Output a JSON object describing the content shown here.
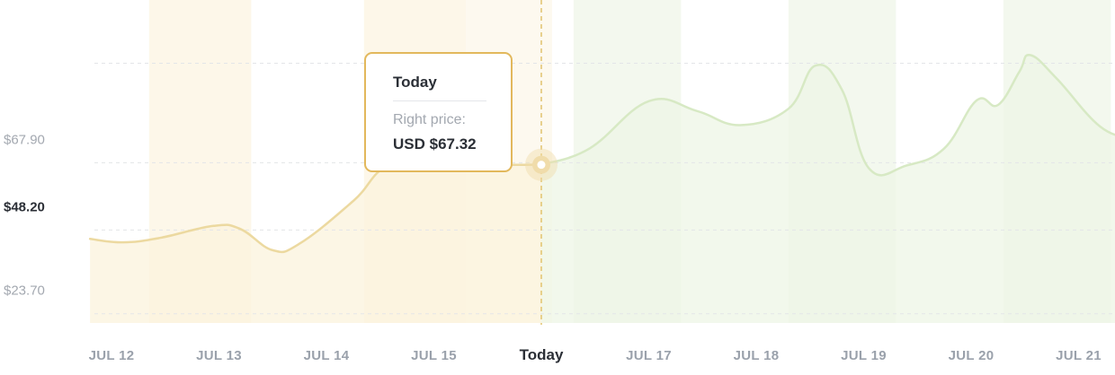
{
  "chart_data": {
    "type": "area",
    "x_labels": [
      "JUL 12",
      "JUL 13",
      "JUL 14",
      "JUL 15",
      "Today",
      "JUL 17",
      "JUL 18",
      "JUL 19",
      "JUL 20",
      "JUL 21"
    ],
    "today_label": "Today",
    "y_ticks": [
      "$67.90",
      "$48.20",
      "$23.70"
    ],
    "y_tick_values": [
      67.9,
      48.2,
      23.7
    ],
    "current_tick": "$48.20",
    "ylim": [
      21,
      110
    ],
    "xlim": [
      0,
      9.35
    ],
    "grid": true,
    "series": [
      {
        "points": [
          [
            -0.2,
            45.6
          ],
          [
            0.1,
            44.6
          ],
          [
            0.45,
            45.9
          ],
          [
            0.95,
            49.4
          ],
          [
            1.2,
            48.5
          ],
          [
            1.5,
            42.3
          ],
          [
            1.75,
            44.2
          ],
          [
            2.25,
            56.7
          ],
          [
            2.6,
            67.3
          ],
          [
            3.2,
            67.8
          ],
          [
            3.6,
            67.3
          ],
          [
            4.0,
            67.3
          ]
        ],
        "color": "#ecd9a0",
        "fill": "#fbf3dc"
      },
      {
        "points": [
          [
            4.0,
            67.3
          ],
          [
            4.45,
            72.1
          ],
          [
            5.0,
            85.9
          ],
          [
            5.45,
            83.0
          ],
          [
            5.85,
            78.9
          ],
          [
            6.3,
            83.7
          ],
          [
            6.55,
            96.3
          ],
          [
            6.8,
            89.1
          ],
          [
            7.05,
            66.2
          ],
          [
            7.4,
            67.1
          ],
          [
            7.75,
            72.1
          ],
          [
            8.05,
            86.1
          ],
          [
            8.25,
            84.8
          ],
          [
            8.45,
            94.6
          ],
          [
            8.55,
            99.4
          ],
          [
            8.8,
            92.4
          ],
          [
            9.2,
            78.5
          ],
          [
            9.5,
            75.0
          ]
        ],
        "color": "#d7e9c4",
        "fill": "#eef6e6"
      }
    ],
    "highlighted_point": {
      "x": 4.0,
      "y": 67.3
    },
    "shaded_bands": [
      {
        "from": 0.35,
        "to": 1.3,
        "color": "#fdf7e9"
      },
      {
        "from": 2.35,
        "to": 3.3,
        "color": "#fdf7e9"
      },
      {
        "from": 3.3,
        "to": 4.1,
        "color": "#fdf9ef"
      },
      {
        "from": 4.3,
        "to": 5.3,
        "color": "#f3f8ee"
      },
      {
        "from": 6.3,
        "to": 7.3,
        "color": "#f3f8ee"
      },
      {
        "from": 8.3,
        "to": 9.3,
        "color": "#f3f8ee"
      }
    ],
    "colors": {
      "today_line": "#e2c36e",
      "marker": "#f0dcaa"
    }
  },
  "tooltip": {
    "title": "Today",
    "label": "Right price:",
    "value": "USD $67.32"
  }
}
